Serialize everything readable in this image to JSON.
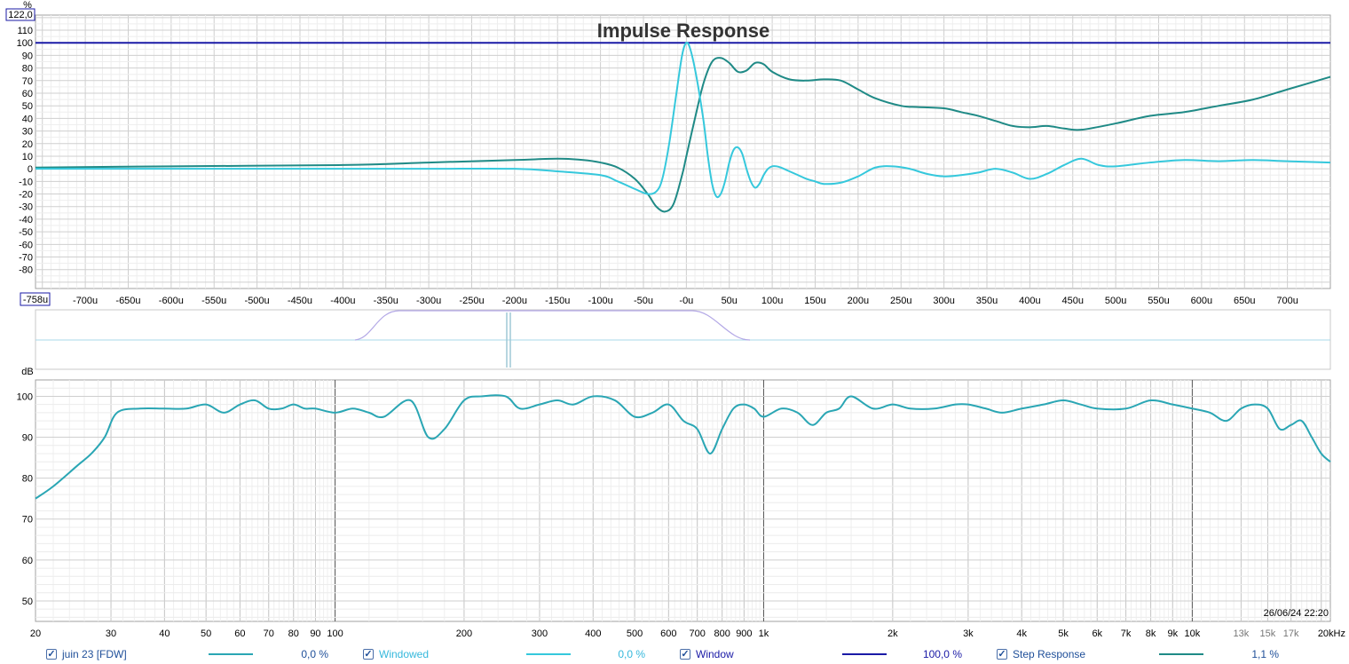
{
  "colors": {
    "step": "#1f8a86",
    "windowed": "#35c8dc",
    "window": "#1a1aa6",
    "freq": "#2aa6b4",
    "window_shape": "#b3a8e6",
    "grid": "#d8d8d8",
    "grid_major": "#555555",
    "axis_text": "#000000"
  },
  "top_panel": {
    "percent_unit": "%",
    "ymax_box": "122,0",
    "x_start_box": "-758u",
    "title": "Impulse Response"
  },
  "middle_panel": {
    "db_label": "dB"
  },
  "bottom_panel": {
    "timestamp": "26/06/24 22:20"
  },
  "legend": [
    {
      "label": "juin 23 [FDW]",
      "value": "0,0 %",
      "checked": true,
      "color_key": "freq",
      "label_color": "#1f4f99"
    },
    {
      "label": "Windowed",
      "value": "0,0 %",
      "checked": true,
      "color_key": "windowed",
      "label_color": "#35b8dc"
    },
    {
      "label": "Window",
      "value": "100,0 %",
      "checked": true,
      "color_key": "window",
      "label_color": "#1a1aa6"
    },
    {
      "label": "Step Response",
      "value": "1,1 %",
      "checked": true,
      "color_key": "step",
      "label_color": "#1f4f99"
    }
  ],
  "chart_data": [
    {
      "type": "line",
      "title": "Impulse Response",
      "ylabel": "%",
      "xlim": [
        -758,
        750
      ],
      "ylim": [
        -95,
        122
      ],
      "x_tick_labels": [
        "-700u",
        "-650u",
        "-600u",
        "-550u",
        "-500u",
        "-450u",
        "-400u",
        "-350u",
        "-300u",
        "-250u",
        "-200u",
        "-150u",
        "-100u",
        "-50u",
        "-0u",
        "50u",
        "100u",
        "150u",
        "200u",
        "250u",
        "300u",
        "350u",
        "400u",
        "450u",
        "500u",
        "550u",
        "600u",
        "650u",
        "700u"
      ],
      "x_ticks": [
        -700,
        -650,
        -600,
        -550,
        -500,
        -450,
        -400,
        -350,
        -300,
        -250,
        -200,
        -150,
        -100,
        -50,
        0,
        50,
        100,
        150,
        200,
        250,
        300,
        350,
        400,
        450,
        500,
        550,
        600,
        650,
        700
      ],
      "y_ticks": [
        110,
        100,
        90,
        80,
        70,
        60,
        50,
        40,
        30,
        20,
        10,
        0,
        -10,
        -20,
        -30,
        -40,
        -50,
        -60,
        -70,
        -80
      ],
      "y_tick_labels": [
        "110",
        "100",
        "90",
        "80",
        "70",
        "60",
        "50",
        "40",
        "30",
        "20",
        "10",
        "0",
        "-10",
        "-20",
        "-30",
        "-40",
        "-50",
        "-60",
        "-70",
        "-80"
      ],
      "grid": true,
      "series": [
        {
          "name": "Window",
          "color_key": "window",
          "x": [
            -758,
            750
          ],
          "y": [
            100,
            100
          ]
        },
        {
          "name": "Step Response",
          "color_key": "step",
          "x": [
            -758,
            -600,
            -400,
            -300,
            -200,
            -150,
            -120,
            -100,
            -80,
            -60,
            -45,
            -35,
            -25,
            -15,
            -5,
            0,
            10,
            20,
            30,
            40,
            50,
            60,
            70,
            80,
            90,
            100,
            120,
            140,
            160,
            180,
            200,
            220,
            250,
            270,
            300,
            320,
            340,
            360,
            380,
            400,
            420,
            440,
            460,
            500,
            540,
            580,
            620,
            660,
            700,
            750
          ],
          "y": [
            1,
            2,
            3,
            5,
            7,
            8,
            7,
            5,
            1,
            -8,
            -20,
            -30,
            -34,
            -28,
            -5,
            10,
            40,
            68,
            85,
            88,
            84,
            77,
            78,
            84,
            83,
            77,
            71,
            70,
            71,
            70,
            63,
            56,
            50,
            49,
            48,
            45,
            42,
            38,
            34,
            33,
            34,
            32,
            31,
            36,
            42,
            45,
            50,
            55,
            63,
            73
          ]
        },
        {
          "name": "Windowed",
          "color_key": "windowed",
          "x": [
            -758,
            -400,
            -300,
            -200,
            -150,
            -100,
            -80,
            -60,
            -45,
            -35,
            -28,
            -20,
            -12,
            -5,
            0,
            5,
            12,
            20,
            25,
            30,
            35,
            40,
            45,
            50,
            55,
            60,
            65,
            70,
            75,
            80,
            85,
            90,
            95,
            100,
            105,
            110,
            120,
            130,
            140,
            150,
            160,
            180,
            200,
            220,
            240,
            260,
            280,
            300,
            320,
            340,
            360,
            380,
            400,
            420,
            440,
            460,
            480,
            500,
            540,
            580,
            620,
            660,
            700,
            750
          ],
          "y": [
            0,
            0,
            0,
            0,
            -2,
            -5,
            -10,
            -16,
            -20,
            -18,
            -8,
            20,
            58,
            90,
            100,
            94,
            72,
            38,
            10,
            -12,
            -22,
            -20,
            -10,
            5,
            15,
            17,
            12,
            0,
            -10,
            -15,
            -12,
            -5,
            0,
            2,
            2,
            1,
            -2,
            -5,
            -8,
            -10,
            -12,
            -11,
            -6,
            1,
            2,
            0,
            -4,
            -6,
            -5,
            -3,
            0,
            -3,
            -8,
            -4,
            3,
            8,
            3,
            2,
            5,
            7,
            6,
            7,
            6,
            5
          ]
        }
      ]
    },
    {
      "type": "line",
      "ylabel": "dB",
      "x_scale": "log",
      "xlim": [
        20,
        21000
      ],
      "ylim": [
        45,
        104
      ],
      "x_tick_labels": [
        "20",
        "30",
        "40",
        "50",
        "60",
        "70",
        "80",
        "90",
        "100",
        "200",
        "300",
        "400",
        "500",
        "600",
        "700",
        "800",
        "900",
        "1k",
        "2k",
        "3k",
        "4k",
        "5k",
        "6k",
        "7k",
        "8k",
        "9k",
        "10k",
        "13k",
        "15k",
        "17k",
        "20kHz"
      ],
      "x_ticks": [
        20,
        30,
        40,
        50,
        60,
        70,
        80,
        90,
        100,
        200,
        300,
        400,
        500,
        600,
        700,
        800,
        900,
        1000,
        2000,
        3000,
        4000,
        5000,
        6000,
        7000,
        8000,
        9000,
        10000,
        13000,
        15000,
        17000,
        20000
      ],
      "y_ticks": [
        100,
        90,
        80,
        70,
        60,
        50
      ],
      "y_tick_labels": [
        "100",
        "90",
        "80",
        "70",
        "60",
        "50"
      ],
      "grid": true,
      "series": [
        {
          "name": "juin 23 [FDW]",
          "color_key": "freq",
          "x": [
            20,
            22,
            25,
            27,
            29,
            31,
            35,
            40,
            45,
            50,
            55,
            60,
            65,
            70,
            75,
            80,
            85,
            90,
            100,
            110,
            120,
            130,
            150,
            165,
            180,
            200,
            220,
            250,
            270,
            300,
            330,
            360,
            400,
            450,
            500,
            550,
            600,
            650,
            700,
            750,
            800,
            850,
            900,
            950,
            1000,
            1100,
            1200,
            1300,
            1400,
            1500,
            1600,
            1800,
            2000,
            2200,
            2500,
            2800,
            3000,
            3300,
            3600,
            4000,
            4500,
            5000,
            5500,
            6000,
            7000,
            8000,
            9000,
            10000,
            11000,
            12000,
            13000,
            14000,
            15000,
            16000,
            17000,
            18000,
            19000,
            20000,
            21000
          ],
          "y": [
            75,
            78,
            83,
            86,
            90,
            96,
            97,
            97,
            97,
            98,
            96,
            98,
            99,
            97,
            97,
            98,
            97,
            97,
            96,
            97,
            96,
            95,
            99,
            90,
            92,
            99,
            100,
            100,
            97,
            98,
            99,
            98,
            100,
            99,
            95,
            96,
            98,
            94,
            92,
            86,
            92,
            97,
            98,
            97,
            95,
            97,
            96,
            93,
            96,
            97,
            100,
            97,
            98,
            97,
            97,
            98,
            98,
            97,
            96,
            97,
            98,
            99,
            98,
            97,
            97,
            99,
            98,
            97,
            96,
            94,
            97,
            98,
            97,
            92,
            93,
            94,
            90,
            86,
            84
          ]
        }
      ]
    }
  ]
}
